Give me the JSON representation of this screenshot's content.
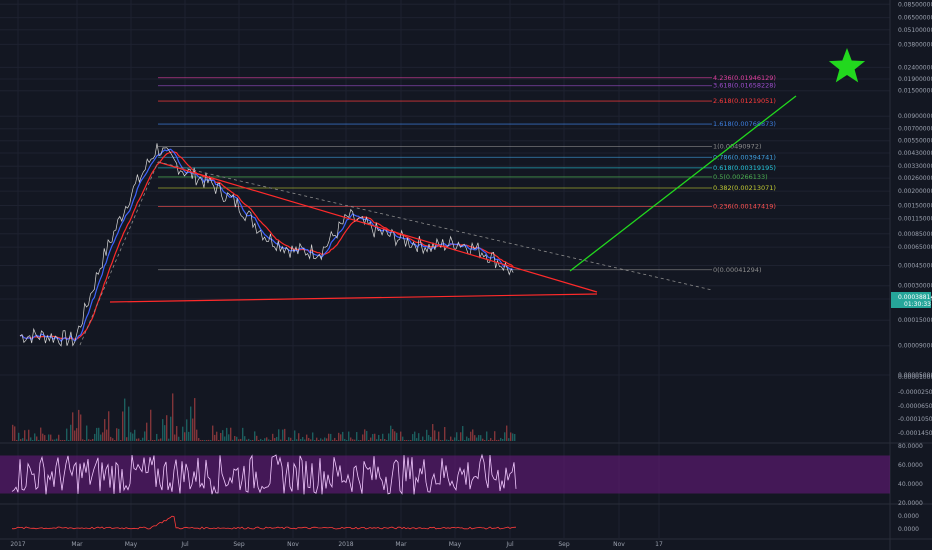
{
  "colors": {
    "background": "#131722",
    "grid": "#1e2230",
    "axis_text": "#9aa0ad",
    "price": "#d8d8d8",
    "ma_fast": "#3f63ff",
    "ma_slow": "#ff2a2a",
    "trend": "#ff2a2a",
    "projection": "#22d81e",
    "star": "#22d81e",
    "rsi_band": "#5a1a6e",
    "rsi_line": "#f2c9ff",
    "macd_line": "#ff3b3b",
    "price_tag": "#26a69a"
  },
  "star_icon": "five-point-star",
  "price_tag": {
    "value": "0.00038814",
    "countdown": "01:30:33"
  },
  "chart_data": [
    {
      "type": "line",
      "panel": "price",
      "scale": "log",
      "ylim": [
        6e-05,
        0.0855
      ],
      "x_ticks": [
        "2017",
        "Mar",
        "May",
        "Jul",
        "Sep",
        "Nov",
        "2018",
        "Mar",
        "May",
        "Jul",
        "Sep",
        "Nov",
        "17"
      ],
      "y_ticks": [
        "0.08500000",
        "0.06500000",
        "0.05100000",
        "0.03800000",
        "0.02400000",
        "0.01900000",
        "0.01500000",
        "0.00900000",
        "0.00700000",
        "0.00550000",
        "0.00430000",
        "0.00330000",
        "0.00260000",
        "0.00200000",
        "0.00150000",
        "0.00115000",
        "0.00085000",
        "0.00065000",
        "0.00045000",
        "0.00030000",
        "0.00023000",
        "0.00015000",
        "0.00009000",
        "0.00005000"
      ],
      "series": [
        {
          "values_note": "price",
          "x": [
            "2017-01",
            "2017-02",
            "2017-03",
            "2017-04",
            "2017-05",
            "2017-06",
            "2017-07",
            "2017-08",
            "2017-09",
            "2017-10",
            "2017-11",
            "2017-12",
            "2018-01",
            "2018-02",
            "2018-03",
            "2018-04",
            "2018-05",
            "2018-06",
            "2018-07"
          ],
          "y": [
            0.00011,
            0.00011,
            0.0001,
            0.0005,
            0.0018,
            0.0048,
            0.003,
            0.0023,
            0.0015,
            0.0008,
            0.0006,
            0.0006,
            0.0012,
            0.0009,
            0.00075,
            0.00065,
            0.00072,
            0.00058,
            0.00039
          ]
        }
      ],
      "fib_levels": [
        {
          "label": "4.236(0.01946129)",
          "value": 0.01946129,
          "color": "#e040a0"
        },
        {
          "label": "3.618(0.01658228)",
          "value": 0.01658228,
          "color": "#9c4dcc"
        },
        {
          "label": "2.618(0.01219051)",
          "value": 0.01219051,
          "color": "#ff3b3b"
        },
        {
          "label": "1.618(0.00768873)",
          "value": 0.00768873,
          "color": "#3d7fe0"
        },
        {
          "label": "1(0.00490972)",
          "value": 0.00490972,
          "color": "#8c8c8c"
        },
        {
          "label": "0.786(0.00394741)",
          "value": 0.00394741,
          "color": "#3fa0e0"
        },
        {
          "label": "0.618(0.00319195)",
          "value": 0.00319195,
          "color": "#26c6da"
        },
        {
          "label": "0.5(0.00266133)",
          "value": 0.00266133,
          "color": "#4caf50"
        },
        {
          "label": "0.382(0.00213071)",
          "value": 0.00213071,
          "color": "#c0ca33"
        },
        {
          "label": "0.236(0.00147419)",
          "value": 0.00147419,
          "color": "#ff5252"
        },
        {
          "label": "0(0.00041294)",
          "value": 0.00041294,
          "color": "#8c8c8c"
        }
      ]
    },
    {
      "type": "bar",
      "panel": "volume",
      "y_ticks": [
        "0.00001000",
        "-0.00002500",
        "-0.00006500",
        "-0.00010500",
        "-0.00014500"
      ]
    },
    {
      "type": "line",
      "panel": "rsi",
      "ylim": [
        20,
        80
      ],
      "y_ticks": [
        "80.0000",
        "60.0000",
        "40.0000",
        "20.0000"
      ]
    },
    {
      "type": "line",
      "panel": "macd",
      "y_ticks": [
        "0.0000",
        "0.0000"
      ]
    }
  ]
}
